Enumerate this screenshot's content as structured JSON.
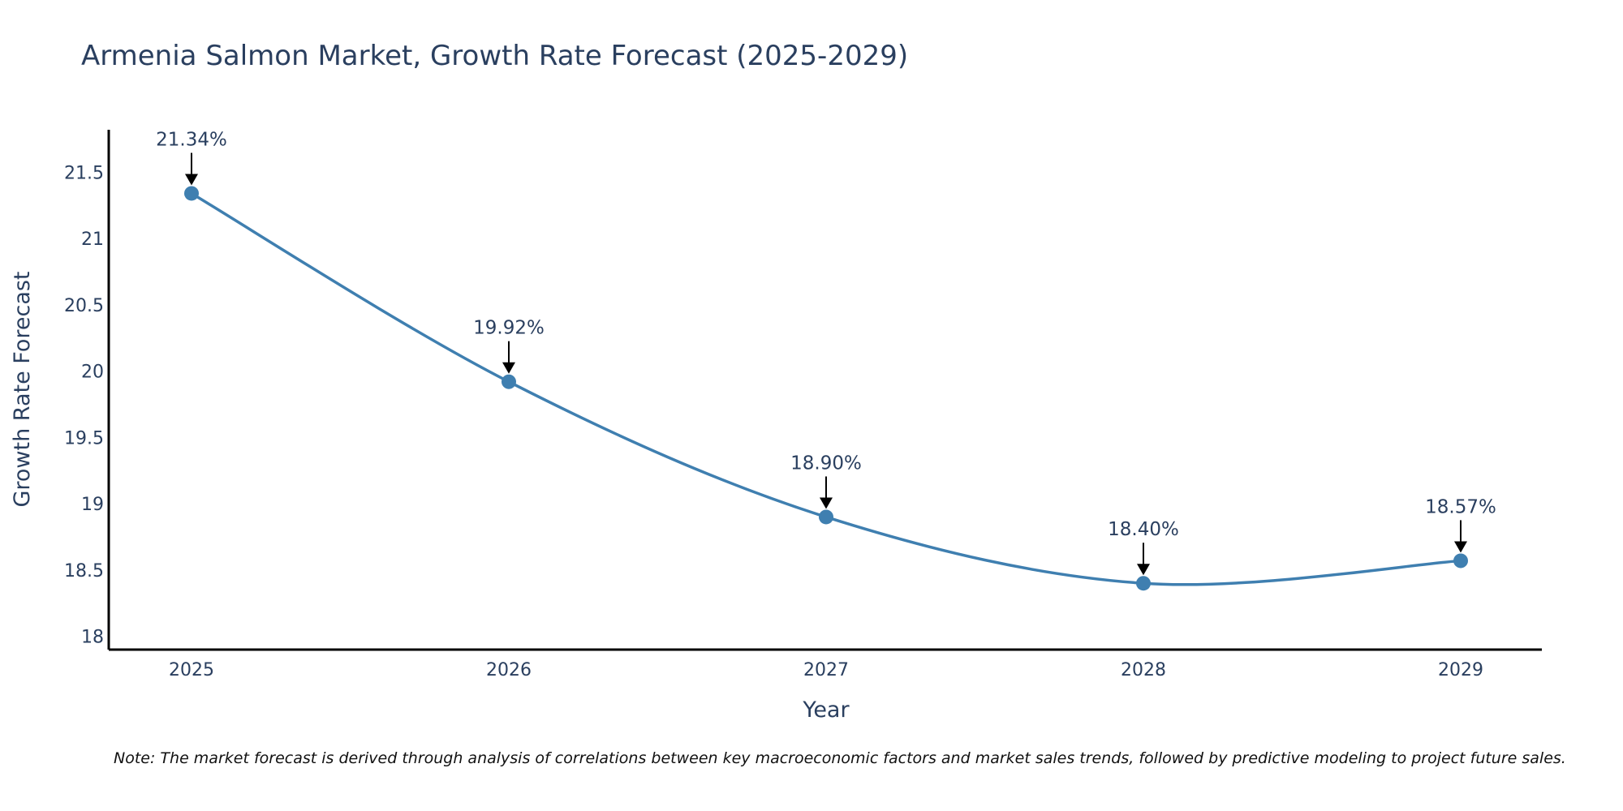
{
  "chart_data": {
    "type": "line",
    "title": "Armenia Salmon Market, Growth Rate Forecast (2025-2029)",
    "xlabel": "Year",
    "ylabel": "Growth Rate Forecast",
    "categories": [
      "2025",
      "2026",
      "2027",
      "2028",
      "2029"
    ],
    "series": [
      {
        "name": "Growth Rate Forecast",
        "values": [
          21.34,
          19.92,
          18.9,
          18.4,
          18.57
        ],
        "labels": [
          "21.34%",
          "19.92%",
          "18.90%",
          "18.40%",
          "18.57%"
        ]
      }
    ],
    "yticks": [
      18,
      18.5,
      19,
      19.5,
      20,
      20.5,
      21,
      21.5
    ],
    "ytick_labels": [
      "18",
      "18.5",
      "19",
      "19.5",
      "20",
      "20.5",
      "21",
      "21.5"
    ],
    "ylim": [
      17.9,
      21.82
    ],
    "line_shape": "spline",
    "grid": false,
    "colors": {
      "line": "#3f7fb0",
      "marker": "#3f7fb0",
      "text": "#2a3f5f",
      "axis": "#000000",
      "arrow": "#000000"
    },
    "note": "Note: The market forecast is derived through analysis of correlations between key macroeconomic factors and market sales trends, followed by predictive modeling to project future sales."
  }
}
